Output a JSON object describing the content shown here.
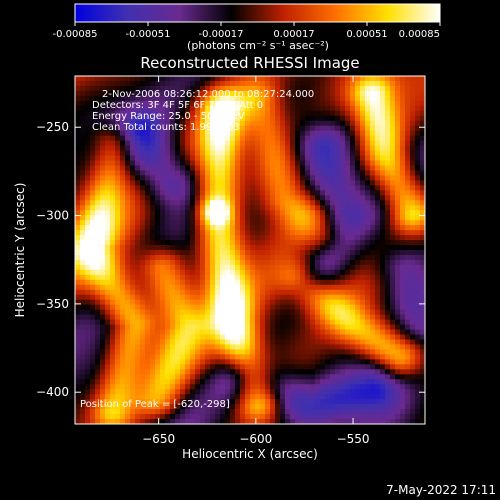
{
  "colorbar": {
    "ticks": [
      "-0.00085",
      "-0.00051",
      "-0.00017",
      "0.00017",
      "0.00051",
      "0.00085"
    ],
    "units": "(photons cm⁻² s⁻¹ asec⁻²)"
  },
  "footer": {
    "date": "7-May-2022 17:11"
  },
  "colors": {
    "background": "#000000",
    "text": "#ffffff"
  },
  "chart_data": {
    "type": "heatmap",
    "title": "Reconstructed RHESSI Image",
    "xlabel": "Heliocentric X (arcsec)",
    "ylabel": "Heliocentric Y (arcsec)",
    "xlim": [
      -693,
      -513
    ],
    "ylim": [
      -418,
      -221
    ],
    "x_ticks": [
      -650,
      -600,
      -550
    ],
    "y_ticks": [
      -400,
      -350,
      -300,
      -250
    ],
    "x_tick_labels": [
      "−650",
      "−600",
      "−550"
    ],
    "y_tick_labels": [
      "−400",
      "−350",
      "−300",
      "−250"
    ],
    "colorscale": {
      "min": -0.00085,
      "max": 0.00085,
      "stops": [
        "#0000e0",
        "#4030b0",
        "#6a2a90",
        "#000000",
        "#c02000",
        "#ff7000",
        "#ffe000",
        "#ffffff"
      ]
    },
    "info_lines": [
      "2-Nov-2006 08:26:12.000 to 08:27:24.000",
      "Detectors: 3F 4F 5F 6F 7F 8F  Att 0",
      "Energy Range: 25.0 - 50.0 keV",
      "Clean    Total counts: 1.99E+03"
    ],
    "peak_label": "Position of Peak = [-620,-298]",
    "peak": [
      -620,
      -298
    ],
    "ridges": [
      {
        "points": [
          [
            -617,
            -240
          ],
          [
            -620,
            -298
          ],
          [
            -612,
            -360
          ],
          [
            -598,
            -405
          ]
        ],
        "amplitude": 0.00085
      },
      {
        "points": [
          [
            -540,
            -232
          ],
          [
            -533,
            -265
          ],
          [
            -520,
            -298
          ]
        ],
        "amplitude": 0.00078
      },
      {
        "points": [
          [
            -672,
            -260
          ],
          [
            -685,
            -320
          ],
          [
            -662,
            -362
          ],
          [
            -674,
            -410
          ]
        ],
        "amplitude": 0.00065
      },
      {
        "points": [
          [
            -577,
            -335
          ],
          [
            -550,
            -362
          ],
          [
            -526,
            -380
          ]
        ],
        "amplitude": 0.0006
      },
      {
        "points": [
          [
            -648,
            -330
          ],
          [
            -636,
            -362
          ],
          [
            -650,
            -404
          ]
        ],
        "amplitude": 0.00052
      },
      {
        "points": [
          [
            -598,
            -235
          ],
          [
            -585,
            -290
          ],
          [
            -566,
            -312
          ]
        ],
        "amplitude": 0.00045
      }
    ],
    "troughs": [
      {
        "points": [
          [
            -565,
            -262
          ],
          [
            -555,
            -300
          ],
          [
            -570,
            -332
          ]
        ],
        "amplitude": -0.00055
      },
      {
        "points": [
          [
            -606,
            -392
          ],
          [
            -572,
            -410
          ],
          [
            -540,
            -398
          ]
        ],
        "amplitude": -0.0006
      },
      {
        "points": [
          [
            -660,
            -255
          ],
          [
            -645,
            -280
          ]
        ],
        "amplitude": -0.00048
      },
      {
        "points": [
          [
            -525,
            -330
          ],
          [
            -515,
            -360
          ]
        ],
        "amplitude": -0.00045
      }
    ]
  }
}
